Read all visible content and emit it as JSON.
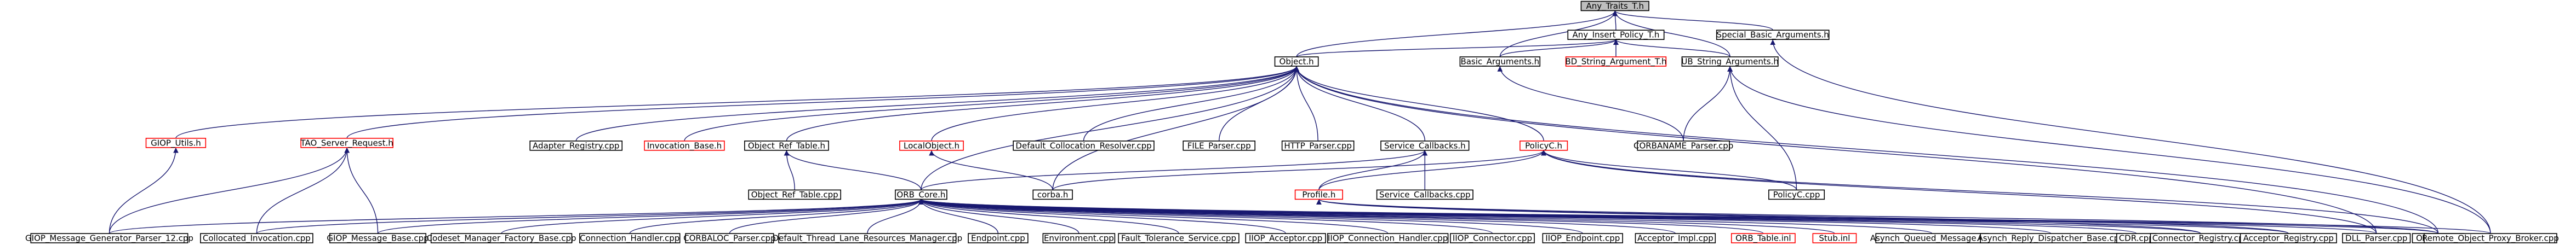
{
  "diagram": {
    "colors": {
      "edge": "#191970",
      "node_border_documented": "#000000",
      "node_border_undocumented": "#ff0000",
      "current_node_fill": "#bfbfbf"
    },
    "nodes": [
      {
        "id": "any_traits",
        "label": "Any_Traits_T.h",
        "current": true
      },
      {
        "id": "any_insert_policy",
        "label": "Any_Insert_Policy_T.h"
      },
      {
        "id": "special_basic_args",
        "label": "Special_Basic_Arguments.h"
      },
      {
        "id": "object_h",
        "label": "Object.h"
      },
      {
        "id": "basic_args",
        "label": "Basic_Arguments.h"
      },
      {
        "id": "bd_string_arg",
        "label": "BD_String_Argument_T.h",
        "undocumented": true
      },
      {
        "id": "ub_string_args",
        "label": "UB_String_Arguments.h"
      },
      {
        "id": "giop_utils",
        "label": "GIOP_Utils.h",
        "undocumented": true
      },
      {
        "id": "tao_server_request",
        "label": "TAO_Server_Request.h",
        "undocumented": true
      },
      {
        "id": "adapter_registry",
        "label": "Adapter_Registry.cpp"
      },
      {
        "id": "invocation_base",
        "label": "Invocation_Base.h",
        "undocumented": true
      },
      {
        "id": "object_ref_table_h",
        "label": "Object_Ref_Table.h"
      },
      {
        "id": "local_object",
        "label": "LocalObject.h",
        "undocumented": true
      },
      {
        "id": "default_collocation",
        "label": "Default_Collocation_Resolver.cpp"
      },
      {
        "id": "file_parser",
        "label": "FILE_Parser.cpp"
      },
      {
        "id": "http_parser",
        "label": "HTTP_Parser.cpp"
      },
      {
        "id": "service_callbacks_h",
        "label": "Service_Callbacks.h"
      },
      {
        "id": "policyc_h",
        "label": "PolicyC.h",
        "undocumented": true
      },
      {
        "id": "corbaname_parser",
        "label": "CORBANAME_Parser.cpp"
      },
      {
        "id": "object_ref_table_cpp",
        "label": "Object_Ref_Table.cpp"
      },
      {
        "id": "orb_core_h",
        "label": "ORB_Core.h"
      },
      {
        "id": "corba_h",
        "label": "corba.h"
      },
      {
        "id": "profile_h",
        "label": "Profile.h",
        "undocumented": true
      },
      {
        "id": "service_callbacks_cpp",
        "label": "Service_Callbacks.cpp"
      },
      {
        "id": "policyc_cpp",
        "label": "PolicyC.cpp"
      },
      {
        "id": "giop_msg_gen_parser",
        "label": "GIOP_Message_Generator_Parser_12.cpp"
      },
      {
        "id": "collocated_invocation",
        "label": "Collocated_Invocation.cpp"
      },
      {
        "id": "giop_message_base",
        "label": "GIOP_Message_Base.cpp"
      },
      {
        "id": "codeset_manager",
        "label": "Codeset_Manager_Factory_Base.cpp"
      },
      {
        "id": "connection_handler",
        "label": "Connection_Handler.cpp"
      },
      {
        "id": "corbaloc_parser",
        "label": "CORBALOC_Parser.cpp"
      },
      {
        "id": "default_thread_lane",
        "label": "Default_Thread_Lane_Resources_Manager.cpp"
      },
      {
        "id": "endpoint",
        "label": "Endpoint.cpp"
      },
      {
        "id": "environment",
        "label": "Environment.cpp"
      },
      {
        "id": "fault_tolerance",
        "label": "Fault_Tolerance_Service.cpp"
      },
      {
        "id": "iiop_acceptor",
        "label": "IIOP_Acceptor.cpp"
      },
      {
        "id": "iiop_conn_handler",
        "label": "IIOP_Connection_Handler.cpp"
      },
      {
        "id": "iiop_connector",
        "label": "IIOP_Connector.cpp"
      },
      {
        "id": "iiop_endpoint",
        "label": "IIOP_Endpoint.cpp"
      },
      {
        "id": "acceptor_impl",
        "label": "Acceptor_Impl.cpp"
      },
      {
        "id": "orb_table_inl",
        "label": "ORB_Table.inl",
        "undocumented": true
      },
      {
        "id": "stub_inl",
        "label": "Stub.inl",
        "undocumented": true
      },
      {
        "id": "asynch_queued",
        "label": "Asynch_Queued_Message.cpp"
      },
      {
        "id": "asynch_reply",
        "label": "Asynch_Reply_Dispatcher_Base.cpp"
      },
      {
        "id": "cdr_cpp",
        "label": "CDR.cpp"
      },
      {
        "id": "connector_registry",
        "label": "Connector_Registry.cpp"
      },
      {
        "id": "acceptor_registry",
        "label": "Acceptor_Registry.cpp"
      },
      {
        "id": "dll_parser",
        "label": "DLL_Parser.cpp"
      },
      {
        "id": "object_cpp",
        "label": "Object.cpp"
      },
      {
        "id": "remote_object_proxy",
        "label": "Remote_Object_Proxy_Broker.cpp"
      }
    ],
    "edges": [
      [
        "any_insert_policy",
        "any_traits"
      ],
      [
        "special_basic_args",
        "any_traits"
      ],
      [
        "object_h",
        "any_traits"
      ],
      [
        "basic_args",
        "any_traits"
      ],
      [
        "ub_string_args",
        "any_traits"
      ],
      [
        "object_h",
        "any_insert_policy"
      ],
      [
        "basic_args",
        "any_insert_policy"
      ],
      [
        "bd_string_arg",
        "any_insert_policy"
      ],
      [
        "ub_string_args",
        "any_insert_policy"
      ],
      [
        "remote_object_proxy",
        "special_basic_args"
      ],
      [
        "giop_utils",
        "object_h"
      ],
      [
        "tao_server_request",
        "object_h"
      ],
      [
        "adapter_registry",
        "object_h"
      ],
      [
        "invocation_base",
        "object_h"
      ],
      [
        "object_ref_table_h",
        "object_h"
      ],
      [
        "local_object",
        "object_h"
      ],
      [
        "default_collocation",
        "object_h"
      ],
      [
        "file_parser",
        "object_h"
      ],
      [
        "http_parser",
        "object_h"
      ],
      [
        "service_callbacks_h",
        "object_h"
      ],
      [
        "policyc_h",
        "object_h"
      ],
      [
        "orb_core_h",
        "object_h"
      ],
      [
        "corba_h",
        "object_h"
      ],
      [
        "object_cpp",
        "object_h"
      ],
      [
        "dll_parser",
        "object_h"
      ],
      [
        "corbaname_parser",
        "basic_args"
      ],
      [
        "corbaname_parser",
        "ub_string_args"
      ],
      [
        "policyc_cpp",
        "ub_string_args"
      ],
      [
        "remote_object_proxy",
        "ub_string_args"
      ],
      [
        "giop_msg_gen_parser",
        "giop_utils"
      ],
      [
        "collocated_invocation",
        "tao_server_request"
      ],
      [
        "giop_message_base",
        "tao_server_request"
      ],
      [
        "giop_msg_gen_parser",
        "tao_server_request"
      ],
      [
        "object_ref_table_cpp",
        "object_ref_table_h"
      ],
      [
        "orb_core_h",
        "object_ref_table_h"
      ],
      [
        "corba_h",
        "local_object"
      ],
      [
        "orb_core_h",
        "service_callbacks_h"
      ],
      [
        "service_callbacks_cpp",
        "service_callbacks_h"
      ],
      [
        "profile_h",
        "service_callbacks_h"
      ],
      [
        "corba_h",
        "policyc_h"
      ],
      [
        "policyc_cpp",
        "policyc_h"
      ],
      [
        "object_cpp",
        "policyc_h"
      ],
      [
        "profile_h",
        "policyc_h"
      ],
      [
        "dll_parser",
        "policyc_h"
      ],
      [
        "connector_registry",
        "profile_h"
      ],
      [
        "acceptor_registry",
        "profile_h"
      ],
      [
        "object_cpp",
        "profile_h"
      ],
      [
        "collocated_invocation",
        "orb_core_h"
      ],
      [
        "giop_message_base",
        "orb_core_h"
      ],
      [
        "codeset_manager",
        "orb_core_h"
      ],
      [
        "connection_handler",
        "orb_core_h"
      ],
      [
        "corbaloc_parser",
        "orb_core_h"
      ],
      [
        "default_thread_lane",
        "orb_core_h"
      ],
      [
        "endpoint",
        "orb_core_h"
      ],
      [
        "environment",
        "orb_core_h"
      ],
      [
        "fault_tolerance",
        "orb_core_h"
      ],
      [
        "iiop_acceptor",
        "orb_core_h"
      ],
      [
        "iiop_conn_handler",
        "orb_core_h"
      ],
      [
        "iiop_connector",
        "orb_core_h"
      ],
      [
        "iiop_endpoint",
        "orb_core_h"
      ],
      [
        "acceptor_impl",
        "orb_core_h"
      ],
      [
        "orb_table_inl",
        "orb_core_h"
      ],
      [
        "stub_inl",
        "orb_core_h"
      ],
      [
        "asynch_queued",
        "orb_core_h"
      ],
      [
        "asynch_reply",
        "orb_core_h"
      ],
      [
        "cdr_cpp",
        "orb_core_h"
      ],
      [
        "connector_registry",
        "orb_core_h"
      ],
      [
        "acceptor_registry",
        "orb_core_h"
      ],
      [
        "dll_parser",
        "orb_core_h"
      ],
      [
        "object_cpp",
        "orb_core_h"
      ],
      [
        "remote_object_proxy",
        "orb_core_h"
      ],
      [
        "giop_msg_gen_parser",
        "orb_core_h"
      ]
    ]
  }
}
